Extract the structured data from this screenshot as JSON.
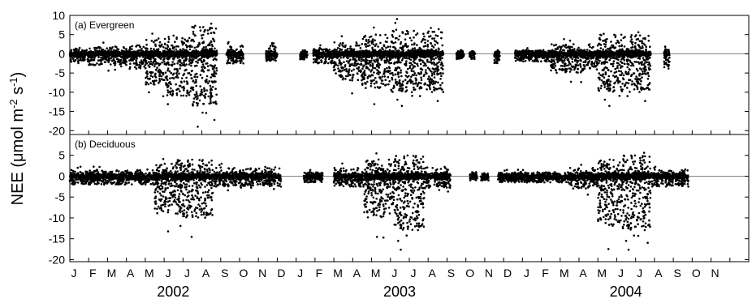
{
  "chart_data": {
    "type": "scatter",
    "ylabel": {
      "main": "NEE (",
      "mu": "μmol m",
      "exp1": "-2",
      "mid": " s",
      "exp2": "-1",
      "close": ")"
    },
    "x_month_ticks": [
      "J",
      "F",
      "M",
      "A",
      "M",
      "J",
      "J",
      "A",
      "S",
      "O",
      "N",
      "D",
      "J",
      "F",
      "M",
      "A",
      "M",
      "J",
      "J",
      "A",
      "S",
      "O",
      "N",
      "D",
      "J",
      "F",
      "M",
      "A",
      "M",
      "J",
      "J",
      "A",
      "S",
      "O",
      "N"
    ],
    "years": [
      "2002",
      "2003",
      "2004"
    ],
    "panels": [
      {
        "label": "(a) Evergreen",
        "ylim": [
          -21,
          10
        ],
        "yticks": [
          10,
          5,
          0,
          -5,
          -10,
          -15,
          -20
        ],
        "segments": [
          {
            "start": 0.0,
            "end": 1.0,
            "spread_low": -2,
            "spread_high": 1.5
          },
          {
            "start": 1.0,
            "end": 3.0,
            "spread_low": -3,
            "spread_high": 2
          },
          {
            "start": 3.0,
            "end": 4.0,
            "spread_low": -4,
            "spread_high": 2.5
          },
          {
            "start": 4.0,
            "end": 5.0,
            "spread_low": -8,
            "spread_high": 4
          },
          {
            "start": 5.0,
            "end": 6.5,
            "spread_low": -11,
            "spread_high": 5
          },
          {
            "start": 6.5,
            "end": 7.8,
            "spread_low": -14,
            "spread_high": 7
          },
          {
            "start": 8.3,
            "end": 9.2,
            "spread_low": -2.5,
            "spread_high": 2
          },
          {
            "start": 10.4,
            "end": 11.0,
            "spread_low": -2,
            "spread_high": 3
          },
          {
            "start": 12.2,
            "end": 12.6,
            "spread_low": -1.5,
            "spread_high": 1
          },
          {
            "start": 12.9,
            "end": 14.0,
            "spread_low": -2.5,
            "spread_high": 1.5
          },
          {
            "start": 14.0,
            "end": 15.5,
            "spread_low": -7,
            "spread_high": 3
          },
          {
            "start": 15.5,
            "end": 17.0,
            "spread_low": -9,
            "spread_high": 5
          },
          {
            "start": 17.0,
            "end": 19.8,
            "spread_low": -10,
            "spread_high": 6
          },
          {
            "start": 20.5,
            "end": 20.9,
            "spread_low": -1.5,
            "spread_high": 1
          },
          {
            "start": 21.2,
            "end": 21.5,
            "spread_low": -1.5,
            "spread_high": 1
          },
          {
            "start": 22.5,
            "end": 22.8,
            "spread_low": -2.5,
            "spread_high": 1
          },
          {
            "start": 23.6,
            "end": 25.5,
            "spread_low": -2,
            "spread_high": 1
          },
          {
            "start": 25.5,
            "end": 28.0,
            "spread_low": -5,
            "spread_high": 2.5
          },
          {
            "start": 28.0,
            "end": 30.8,
            "spread_low": -10,
            "spread_high": 5
          },
          {
            "start": 31.5,
            "end": 31.8,
            "spread_low": -4,
            "spread_high": 2
          }
        ]
      },
      {
        "label": "(b) Deciduous",
        "ylim": [
          -20.5,
          10
        ],
        "yticks": [
          5,
          0,
          -5,
          -10,
          -15,
          -20
        ],
        "segments": [
          {
            "start": 0.0,
            "end": 4.5,
            "spread_low": -2,
            "spread_high": 1.5
          },
          {
            "start": 4.5,
            "end": 5.6,
            "spread_low": -9,
            "spread_high": 3
          },
          {
            "start": 5.6,
            "end": 7.6,
            "spread_low": -10,
            "spread_high": 4
          },
          {
            "start": 7.6,
            "end": 11.2,
            "spread_low": -2.5,
            "spread_high": 2
          },
          {
            "start": 12.4,
            "end": 13.4,
            "spread_low": -1.5,
            "spread_high": 1
          },
          {
            "start": 14.0,
            "end": 15.6,
            "spread_low": -2.5,
            "spread_high": 2
          },
          {
            "start": 15.6,
            "end": 17.2,
            "spread_low": -10,
            "spread_high": 4
          },
          {
            "start": 17.2,
            "end": 18.8,
            "spread_low": -13,
            "spread_high": 5
          },
          {
            "start": 18.8,
            "end": 20.2,
            "spread_low": -3,
            "spread_high": 2
          },
          {
            "start": 21.2,
            "end": 21.6,
            "spread_low": -1,
            "spread_high": 0.5
          },
          {
            "start": 21.8,
            "end": 22.2,
            "spread_low": -1,
            "spread_high": 0.5
          },
          {
            "start": 22.7,
            "end": 26.5,
            "spread_low": -1.5,
            "spread_high": 1
          },
          {
            "start": 26.5,
            "end": 28.0,
            "spread_low": -3,
            "spread_high": 2
          },
          {
            "start": 28.0,
            "end": 29.3,
            "spread_low": -12,
            "spread_high": 4
          },
          {
            "start": 29.3,
            "end": 30.8,
            "spread_low": -13,
            "spread_high": 5
          },
          {
            "start": 30.8,
            "end": 32.8,
            "spread_low": -2.5,
            "spread_high": 1.5
          }
        ]
      }
    ],
    "point_color": "#000000",
    "zero_line_color": "#808080"
  }
}
